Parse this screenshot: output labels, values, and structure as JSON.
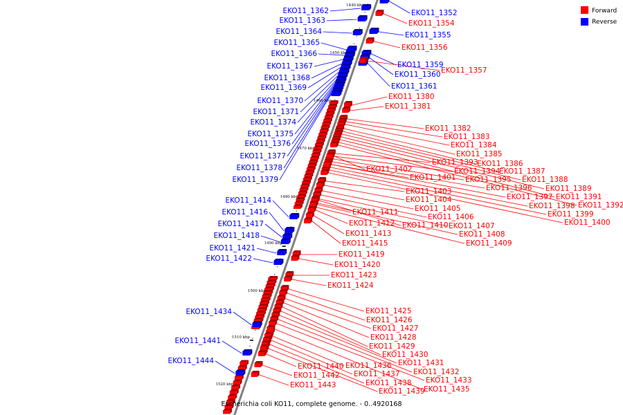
{
  "caption": "Escherichia coli KO11, complete genome. - 0..4920168",
  "legend": [
    {
      "label": "Forward",
      "color": "#ff0000"
    },
    {
      "label": "Reverse",
      "color": "#0000ff"
    }
  ],
  "colors": {
    "forward": "#ff0000",
    "reverse": "#0000ff",
    "backbone": "#808080"
  },
  "ticks": [
    "1440 kbp",
    "1450 kbp",
    "1460 kbp",
    "1470 kbp",
    "1480 kbp",
    "1490 kbp",
    "1500 kbp",
    "1510 kbp",
    "1520 kbp"
  ],
  "genes_reverse": [
    "EKO11_1362",
    "EKO11_1363",
    "EKO11_1364",
    "EKO11_1365",
    "EKO11_1366",
    "EKO11_1367",
    "EKO11_1368",
    "EKO11_1369",
    "EKO11_1370",
    "EKO11_1371",
    "EKO11_1374",
    "EKO11_1375",
    "EKO11_1376",
    "EKO11_1377",
    "EKO11_1378",
    "EKO11_1379",
    "EKO11_1414",
    "EKO11_1416",
    "EKO11_1417",
    "EKO11_1418",
    "EKO11_1421",
    "EKO11_1422",
    "EKO11_1434",
    "EKO11_1441",
    "EKO11_1444"
  ],
  "genes_right_reverse": [
    "EKO11_1352",
    "EKO11_1355",
    "EKO11_1359",
    "EKO11_1360",
    "EKO11_1361"
  ],
  "genes_forward": [
    "EKO11_1354",
    "EKO11_1356",
    "EKO11_1357",
    "EKO11_1380",
    "EKO11_1381",
    "EKO11_1382",
    "EKO11_1383",
    "EKO11_1384",
    "EKO11_1385",
    "EKO11_1386",
    "EKO11_1387",
    "EKO11_1388",
    "EKO11_1389",
    "EKO11_1391",
    "EKO11_1392",
    "EKO11_1393",
    "EKO11_1394",
    "EKO11_1395",
    "EKO11_1396",
    "EKO11_1397",
    "EKO11_1398",
    "EKO11_1399",
    "EKO11_1400",
    "EKO11_1401",
    "EKO11_1402",
    "EKO11_1403",
    "EKO11_1404",
    "EKO11_1405",
    "EKO11_1406",
    "EKO11_1407",
    "EKO11_1408",
    "EKO11_1409",
    "EKO11_1410",
    "EKO11_1411",
    "EKO11_1412",
    "EKO11_1413",
    "EKO11_1415",
    "EKO11_1419",
    "EKO11_1420",
    "EKO11_1423",
    "EKO11_1424",
    "EKO11_1425",
    "EKO11_1426",
    "EKO11_1427",
    "EKO11_1428",
    "EKO11_1429",
    "EKO11_1430",
    "EKO11_1431",
    "EKO11_1432",
    "EKO11_1433",
    "EKO11_1435",
    "EKO11_1436",
    "EKO11_1437",
    "EKO11_1438",
    "EKO11_1439",
    "EKO11_1440",
    "EKO11_1442",
    "EKO11_1443"
  ]
}
